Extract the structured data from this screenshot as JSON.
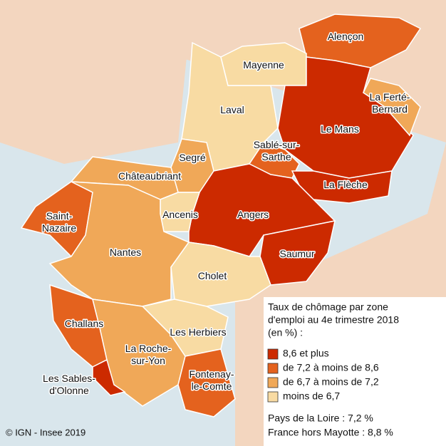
{
  "zones": [
    {
      "label": [
        "Alençon"
      ],
      "color": "#e4621e"
    },
    {
      "label": [
        "Mayenne"
      ],
      "color": "#f8dba3"
    },
    {
      "label": [
        "Laval"
      ],
      "color": "#f8dba3"
    },
    {
      "label": [
        "Le Mans"
      ],
      "color": "#cc2a00"
    },
    {
      "label": [
        "La Ferté-",
        "Bernard"
      ],
      "color": "#f0a858"
    },
    {
      "label": [
        "Sablé-sur-",
        "Sarthe"
      ],
      "color": "#e4621e"
    },
    {
      "label": [
        "La Flèche"
      ],
      "color": "#cc2a00"
    },
    {
      "label": [
        "Segré"
      ],
      "color": "#f0a858"
    },
    {
      "label": [
        "Châteaubriant"
      ],
      "color": "#f0a858"
    },
    {
      "label": [
        "Ancenis"
      ],
      "color": "#f8dba3"
    },
    {
      "label": [
        "Angers"
      ],
      "color": "#cc2a00"
    },
    {
      "label": [
        "Saumur"
      ],
      "color": "#cc2a00"
    },
    {
      "label": [
        "Saint-",
        "Nazaire"
      ],
      "color": "#e4621e"
    },
    {
      "label": [
        "Nantes"
      ],
      "color": "#f0a858"
    },
    {
      "label": [
        "Cholet"
      ],
      "color": "#f8dba3"
    },
    {
      "label": [
        "Challans"
      ],
      "color": "#e4621e"
    },
    {
      "label": [
        "Les Herbiers"
      ],
      "color": "#f8dba3"
    },
    {
      "label": [
        "La Roche-",
        "sur-Yon"
      ],
      "color": "#f0a858"
    },
    {
      "label": [
        "Les Sables-",
        "d'Olonne"
      ],
      "color": "#cc2a00"
    },
    {
      "label": [
        "Fontenay-",
        "le-Comte"
      ],
      "color": "#e4621e"
    }
  ],
  "legend": {
    "title": [
      "Taux de chômage par zone",
      "d'emploi au 4e trimestre 2018",
      "(en %) :"
    ],
    "items": [
      {
        "label": "8,6 et plus",
        "color": "#cc2a00"
      },
      {
        "label": "de 7,2 à moins de 8,6",
        "color": "#e4621e"
      },
      {
        "label": "de 6,7 à moins de 7,2",
        "color": "#f0a858"
      },
      {
        "label": "moins de 6,7",
        "color": "#f8dba3"
      }
    ],
    "notes": [
      "Pays de la Loire : 7,2 %",
      "France hors Mayotte : 8,8 %"
    ]
  },
  "source": "© IGN - Insee 2019"
}
